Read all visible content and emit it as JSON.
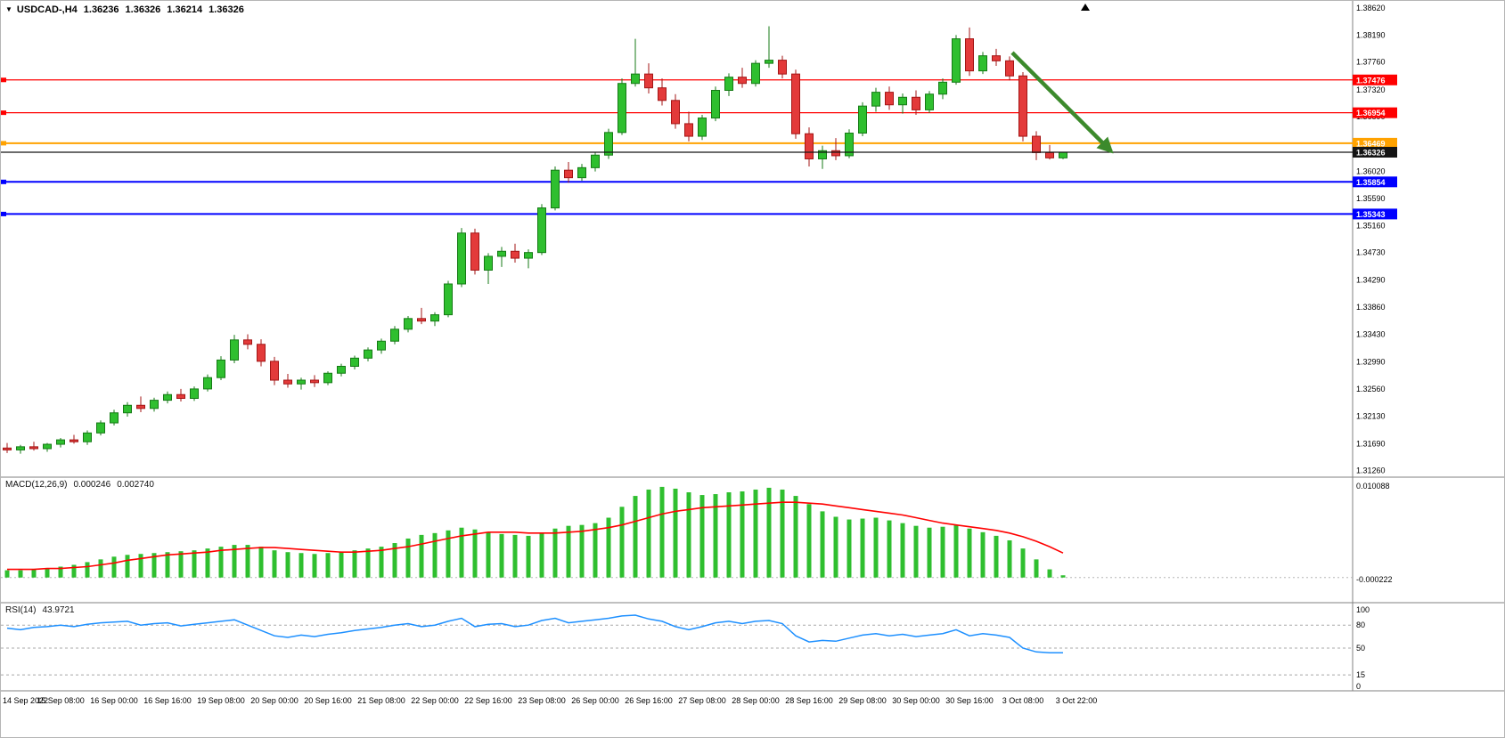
{
  "header": {
    "dropdown_icon": "▼",
    "symbol": "USDCAD-,H4",
    "open": "1.36236",
    "high": "1.36326",
    "low": "1.36214",
    "close": "1.36326"
  },
  "colors": {
    "bull": "#2fbf2f",
    "bull_edge": "#157a15",
    "bear": "#e33a3a",
    "bear_edge": "#a31515",
    "axis_text": "#000000",
    "separator": "#808080"
  },
  "chart_data": {
    "type": "candlestick",
    "title": "USDCAD H4",
    "price_axis": {
      "max": 1.3862,
      "min": 1.3126,
      "labels": [
        "1.38620",
        "1.38190",
        "1.37760",
        "1.37320",
        "1.36890",
        "1.36460",
        "1.36020",
        "1.35590",
        "1.35160",
        "1.34730",
        "1.34290",
        "1.33860",
        "1.33430",
        "1.32990",
        "1.32560",
        "1.32130",
        "1.31690",
        "1.31260"
      ]
    },
    "time_axis": {
      "label_every": 4,
      "labels": [
        "14 Sep 2022",
        "15 Sep 08:00",
        "16 Sep 00:00",
        "16 Sep 16:00",
        "19 Sep 08:00",
        "20 Sep 00:00",
        "20 Sep 16:00",
        "21 Sep 08:00",
        "22 Sep 00:00",
        "22 Sep 16:00",
        "23 Sep 08:00",
        "26 Sep 00:00",
        "26 Sep 16:00",
        "27 Sep 08:00",
        "28 Sep 00:00",
        "28 Sep 16:00",
        "29 Sep 08:00",
        "30 Sep 00:00",
        "30 Sep 16:00",
        "3 Oct 08:00",
        "3 Oct 22:00"
      ]
    },
    "candles": [
      [
        1.3162,
        1.317,
        1.3154,
        1.3159
      ],
      [
        1.3159,
        1.3167,
        1.3153,
        1.3164
      ],
      [
        1.3164,
        1.3172,
        1.3158,
        1.3161
      ],
      [
        1.3161,
        1.317,
        1.3156,
        1.3168
      ],
      [
        1.3168,
        1.3178,
        1.3163,
        1.3175
      ],
      [
        1.3175,
        1.3183,
        1.3169,
        1.3172
      ],
      [
        1.3172,
        1.319,
        1.3167,
        1.3186
      ],
      [
        1.3186,
        1.3206,
        1.3182,
        1.3202
      ],
      [
        1.3202,
        1.3223,
        1.3198,
        1.3218
      ],
      [
        1.3218,
        1.3235,
        1.3212,
        1.323
      ],
      [
        1.323,
        1.3244,
        1.3219,
        1.3225
      ],
      [
        1.3225,
        1.3242,
        1.322,
        1.3238
      ],
      [
        1.3238,
        1.3252,
        1.3233,
        1.3247
      ],
      [
        1.3247,
        1.3256,
        1.3236,
        1.3241
      ],
      [
        1.3241,
        1.326,
        1.3237,
        1.3256
      ],
      [
        1.3256,
        1.3279,
        1.3252,
        1.3274
      ],
      [
        1.3274,
        1.3308,
        1.327,
        1.3302
      ],
      [
        1.3302,
        1.3342,
        1.3297,
        1.3334
      ],
      [
        1.3334,
        1.3343,
        1.3319,
        1.3327
      ],
      [
        1.3327,
        1.3335,
        1.3292,
        1.33
      ],
      [
        1.33,
        1.3307,
        1.3262,
        1.327
      ],
      [
        1.327,
        1.328,
        1.3258,
        1.3264
      ],
      [
        1.3264,
        1.3274,
        1.3255,
        1.327
      ],
      [
        1.327,
        1.3278,
        1.3259,
        1.3266
      ],
      [
        1.3266,
        1.3284,
        1.3262,
        1.3281
      ],
      [
        1.3281,
        1.3296,
        1.3276,
        1.3292
      ],
      [
        1.3292,
        1.3309,
        1.3287,
        1.3305
      ],
      [
        1.3305,
        1.3322,
        1.33,
        1.3318
      ],
      [
        1.3318,
        1.3336,
        1.3312,
        1.3332
      ],
      [
        1.3332,
        1.3356,
        1.3327,
        1.3351
      ],
      [
        1.3351,
        1.3372,
        1.3346,
        1.3368
      ],
      [
        1.3368,
        1.3385,
        1.3359,
        1.3364
      ],
      [
        1.3364,
        1.3378,
        1.3356,
        1.3374
      ],
      [
        1.3374,
        1.3428,
        1.337,
        1.3423
      ],
      [
        1.3423,
        1.3512,
        1.3418,
        1.3504
      ],
      [
        1.3504,
        1.3511,
        1.3438,
        1.3445
      ],
      [
        1.3445,
        1.3472,
        1.3423,
        1.3467
      ],
      [
        1.3467,
        1.3482,
        1.345,
        1.3475
      ],
      [
        1.3475,
        1.3487,
        1.3457,
        1.3464
      ],
      [
        1.3464,
        1.3478,
        1.3448,
        1.3473
      ],
      [
        1.3473,
        1.355,
        1.3469,
        1.3544
      ],
      [
        1.3544,
        1.361,
        1.354,
        1.3604
      ],
      [
        1.3604,
        1.3617,
        1.3584,
        1.3592
      ],
      [
        1.3592,
        1.3614,
        1.3587,
        1.3608
      ],
      [
        1.3608,
        1.3633,
        1.3602,
        1.3628
      ],
      [
        1.3628,
        1.367,
        1.3622,
        1.3664
      ],
      [
        1.3664,
        1.375,
        1.366,
        1.3742
      ],
      [
        1.3742,
        1.3813,
        1.3737,
        1.3757
      ],
      [
        1.3757,
        1.3774,
        1.3726,
        1.3735
      ],
      [
        1.3735,
        1.375,
        1.3707,
        1.3715
      ],
      [
        1.3715,
        1.3725,
        1.367,
        1.3678
      ],
      [
        1.3678,
        1.3697,
        1.365,
        1.3658
      ],
      [
        1.3658,
        1.3692,
        1.3652,
        1.3687
      ],
      [
        1.3687,
        1.3737,
        1.3682,
        1.3731
      ],
      [
        1.3731,
        1.3758,
        1.3722,
        1.3752
      ],
      [
        1.3752,
        1.3767,
        1.3735,
        1.3742
      ],
      [
        1.3742,
        1.3779,
        1.3737,
        1.3774
      ],
      [
        1.3774,
        1.3833,
        1.3767,
        1.3779
      ],
      [
        1.3779,
        1.3786,
        1.375,
        1.3757
      ],
      [
        1.3757,
        1.3764,
        1.3654,
        1.3662
      ],
      [
        1.3662,
        1.3672,
        1.361,
        1.3622
      ],
      [
        1.3622,
        1.3643,
        1.3606,
        1.3635
      ],
      [
        1.3635,
        1.3655,
        1.362,
        1.3627
      ],
      [
        1.3627,
        1.3669,
        1.3623,
        1.3663
      ],
      [
        1.3663,
        1.3712,
        1.3658,
        1.3706
      ],
      [
        1.3706,
        1.3735,
        1.3697,
        1.3728
      ],
      [
        1.3728,
        1.3737,
        1.37,
        1.3708
      ],
      [
        1.3708,
        1.3726,
        1.3694,
        1.372
      ],
      [
        1.372,
        1.3731,
        1.3692,
        1.37
      ],
      [
        1.37,
        1.373,
        1.3695,
        1.3725
      ],
      [
        1.3725,
        1.375,
        1.3717,
        1.3744
      ],
      [
        1.3744,
        1.3819,
        1.374,
        1.3813
      ],
      [
        1.3813,
        1.3831,
        1.3754,
        1.3762
      ],
      [
        1.3762,
        1.3792,
        1.3757,
        1.3786
      ],
      [
        1.3786,
        1.3797,
        1.377,
        1.3778
      ],
      [
        1.3778,
        1.3785,
        1.3747,
        1.3754
      ],
      [
        1.3754,
        1.376,
        1.365,
        1.3658
      ],
      [
        1.3658,
        1.3666,
        1.362,
        1.3632
      ],
      [
        1.3632,
        1.3644,
        1.3621,
        1.36236
      ],
      [
        1.36236,
        1.36326,
        1.36214,
        1.36326
      ]
    ],
    "hlines": [
      {
        "price": 1.37476,
        "label": "1.37476",
        "color": "#ff0000",
        "width": 1.3
      },
      {
        "price": 1.36954,
        "label": "1.36954",
        "color": "#ff0000",
        "width": 1.3
      },
      {
        "price": 1.36469,
        "label": "1.36469",
        "color": "#ffa200",
        "width": 2
      },
      {
        "price": 1.35854,
        "label": "1.35854",
        "color": "#0000ff",
        "width": 2
      },
      {
        "price": 1.35343,
        "label": "1.35343",
        "color": "#0000ff",
        "width": 2
      }
    ],
    "current_price": {
      "price": 1.36326,
      "label": "1.36326",
      "color": "#141414"
    },
    "trend_arrow": {
      "from_index": 75.2,
      "from_price": 1.3791,
      "to_index": 82.6,
      "to_price": 1.3634,
      "color": "#3c8a2c"
    },
    "indicators": {
      "macd": {
        "name": "MACD(12,26,9)",
        "value_main": "0.000246",
        "value_signal": "0.002740",
        "max": 0.010088,
        "min": -0.000222,
        "axis_labels": [
          "0.010088",
          "-0.000222"
        ],
        "histogram_color": "#2fbf2f",
        "signal_color": "#ff0000",
        "histogram": [
          0.0008,
          0.0008,
          0.0009,
          0.001,
          0.0012,
          0.0014,
          0.0017,
          0.002,
          0.0023,
          0.0025,
          0.0026,
          0.0027,
          0.0028,
          0.0029,
          0.003,
          0.0032,
          0.0034,
          0.0036,
          0.0036,
          0.0034,
          0.003,
          0.0028,
          0.0027,
          0.0026,
          0.0027,
          0.0028,
          0.003,
          0.0032,
          0.0034,
          0.0038,
          0.0043,
          0.0047,
          0.0049,
          0.0052,
          0.0055,
          0.0053,
          0.005,
          0.0048,
          0.0047,
          0.0046,
          0.0049,
          0.0054,
          0.0057,
          0.0058,
          0.006,
          0.0066,
          0.0078,
          0.009,
          0.0097,
          0.01,
          0.0098,
          0.0094,
          0.0091,
          0.0092,
          0.0094,
          0.0095,
          0.0097,
          0.0099,
          0.0097,
          0.009,
          0.0081,
          0.0073,
          0.0067,
          0.0064,
          0.0065,
          0.0066,
          0.0063,
          0.006,
          0.0057,
          0.0055,
          0.0056,
          0.0058,
          0.0054,
          0.005,
          0.0046,
          0.0041,
          0.0032,
          0.002,
          0.0009,
          0.000246
        ],
        "signal": [
          0.0009,
          0.0009,
          0.0009,
          0.001,
          0.001,
          0.0011,
          0.0012,
          0.0014,
          0.0016,
          0.0019,
          0.0021,
          0.0023,
          0.0025,
          0.0026,
          0.0027,
          0.0028,
          0.003,
          0.0031,
          0.0032,
          0.0033,
          0.0033,
          0.0032,
          0.0031,
          0.003,
          0.0029,
          0.0028,
          0.0028,
          0.0029,
          0.003,
          0.0032,
          0.0034,
          0.0037,
          0.004,
          0.0043,
          0.0046,
          0.0048,
          0.005,
          0.005,
          0.005,
          0.0049,
          0.0049,
          0.0049,
          0.005,
          0.0051,
          0.0053,
          0.0055,
          0.0058,
          0.0062,
          0.0066,
          0.007,
          0.0073,
          0.0075,
          0.0077,
          0.0078,
          0.0079,
          0.008,
          0.0081,
          0.0082,
          0.0083,
          0.0083,
          0.0082,
          0.0081,
          0.0079,
          0.0077,
          0.0075,
          0.0073,
          0.0071,
          0.0069,
          0.0066,
          0.0063,
          0.006,
          0.0058,
          0.0056,
          0.0054,
          0.0052,
          0.0049,
          0.0045,
          0.004,
          0.0034,
          0.0027
        ]
      },
      "rsi": {
        "name": "RSI(14)",
        "value": "43.9721",
        "max": 100,
        "min": 0,
        "levels": [
          80,
          50,
          15
        ],
        "axis_labels": [
          "100",
          "80",
          "50",
          "15",
          "0"
        ],
        "line_color": "#1e90ff",
        "values": [
          76,
          74,
          77,
          78,
          80,
          78,
          81,
          83,
          84,
          85,
          80,
          82,
          83,
          79,
          81,
          83,
          85,
          87,
          80,
          73,
          66,
          64,
          67,
          65,
          68,
          70,
          73,
          75,
          77,
          80,
          82,
          78,
          80,
          85,
          89,
          78,
          81,
          82,
          78,
          80,
          86,
          89,
          83,
          85,
          87,
          89,
          92,
          93,
          88,
          85,
          78,
          74,
          78,
          83,
          85,
          82,
          85,
          86,
          82,
          66,
          58,
          60,
          59,
          63,
          67,
          69,
          66,
          68,
          65,
          67,
          69,
          74,
          66,
          69,
          67,
          64,
          50,
          45,
          44,
          43.97
        ]
      }
    }
  }
}
